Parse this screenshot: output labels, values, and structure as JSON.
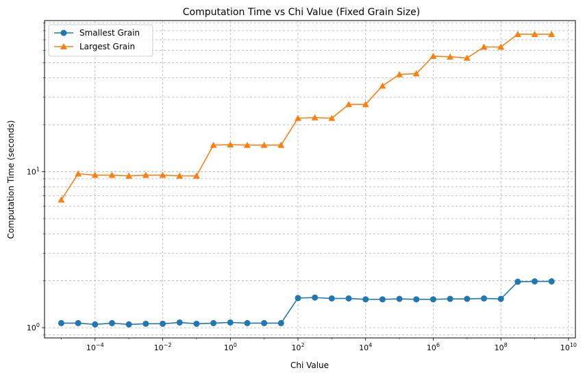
{
  "chart_data": {
    "type": "line",
    "title": "Computation Time vs Chi Value (Fixed Grain Size)",
    "xlabel": "Chi Value",
    "ylabel": "Computation Time (seconds)",
    "xscale": "log",
    "yscale": "log",
    "xlim": [
      3.2e-06,
      16000000000.0
    ],
    "ylim": [
      0.86,
      93
    ],
    "grid": true,
    "legend_position": "top-left",
    "x": [
      1e-05,
      3.16e-05,
      0.0001,
      0.000316,
      0.001,
      0.00316,
      0.01,
      0.0316,
      0.1,
      0.316,
      1,
      3.16,
      10,
      31.6,
      100,
      316,
      1000,
      3162,
      10000,
      31623,
      100000,
      316228,
      1000000,
      3162278,
      10000000,
      31622777,
      100000000,
      316227766,
      1000000000,
      3162277660
    ],
    "series": [
      {
        "name": "Smallest Grain",
        "color": "#1f77b4",
        "marker": "circle",
        "values": [
          1.07,
          1.07,
          1.05,
          1.07,
          1.05,
          1.06,
          1.06,
          1.08,
          1.06,
          1.07,
          1.08,
          1.07,
          1.07,
          1.07,
          1.55,
          1.56,
          1.54,
          1.54,
          1.52,
          1.52,
          1.53,
          1.52,
          1.52,
          1.53,
          1.53,
          1.54,
          1.53,
          1.97,
          1.98,
          1.98
        ]
      },
      {
        "name": "Largest Grain",
        "color": "#ff7f0e",
        "marker": "triangle",
        "values": [
          6.6,
          9.7,
          9.5,
          9.5,
          9.4,
          9.5,
          9.5,
          9.4,
          9.4,
          14.8,
          14.9,
          14.8,
          14.8,
          14.8,
          22.0,
          22.2,
          22.0,
          27.0,
          27.0,
          35.5,
          42.0,
          42.5,
          55.0,
          54.5,
          53.5,
          63.0,
          63.0,
          76.0,
          76.0,
          76.0
        ]
      }
    ],
    "xticks": [
      {
        "value": 0.0001,
        "base": "10",
        "exp": "−4"
      },
      {
        "value": 0.01,
        "base": "10",
        "exp": "−2"
      },
      {
        "value": 1,
        "base": "10",
        "exp": "0"
      },
      {
        "value": 100,
        "base": "10",
        "exp": "2"
      },
      {
        "value": 10000,
        "base": "10",
        "exp": "4"
      },
      {
        "value": 1000000,
        "base": "10",
        "exp": "6"
      },
      {
        "value": 100000000,
        "base": "10",
        "exp": "8"
      },
      {
        "value": 10000000000,
        "base": "10",
        "exp": "10"
      }
    ],
    "yticks": [
      {
        "value": 1,
        "base": "10",
        "exp": "0"
      },
      {
        "value": 10,
        "base": "10",
        "exp": "1"
      }
    ]
  }
}
